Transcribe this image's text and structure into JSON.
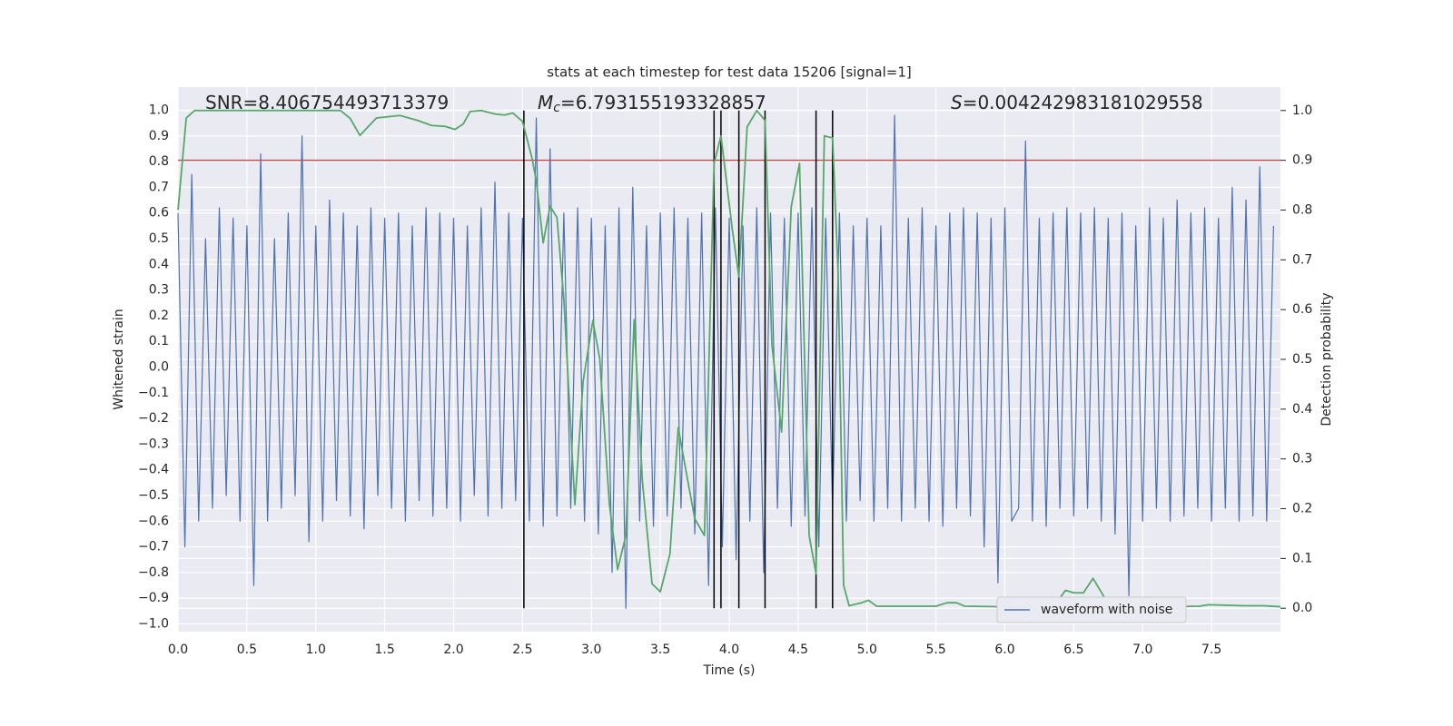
{
  "chart_data": {
    "type": "line",
    "title": "stats at each timestep for test data 15206 [signal=1]",
    "xlabel": "Time (s)",
    "ylabel": "Whitened strain",
    "y2label": "Detection probability",
    "xlim": [
      0,
      8.0
    ],
    "ylim": [
      -1.03,
      1.09
    ],
    "y2lim": [
      -0.047,
      1.047
    ],
    "xticks": [
      {
        "value": 0,
        "label": "0.0"
      },
      0.5,
      {
        "value": 1,
        "label": "1.0"
      },
      1.5,
      {
        "value": 2,
        "label": "2.0"
      },
      2.5,
      {
        "value": 3,
        "label": "3.0"
      },
      3.5,
      {
        "value": 4,
        "label": "4.0"
      },
      4.5,
      {
        "value": 5,
        "label": "5.0"
      },
      5.5,
      {
        "value": 6,
        "label": "6.0"
      },
      6.5,
      {
        "value": 7,
        "label": "7.0"
      },
      7.5
    ],
    "yticks": [
      {
        "value": -1,
        "label": "−1.0"
      },
      {
        "value": -0.9,
        "label": "−0.9"
      },
      {
        "value": -0.8,
        "label": "−0.8"
      },
      {
        "value": -0.7,
        "label": "−0.7"
      },
      {
        "value": -0.6,
        "label": "−0.6"
      },
      {
        "value": -0.5,
        "label": "−0.5"
      },
      {
        "value": -0.4,
        "label": "−0.4"
      },
      {
        "value": -0.3,
        "label": "−0.3"
      },
      {
        "value": -0.2,
        "label": "−0.2"
      },
      {
        "value": -0.1,
        "label": "−0.1"
      },
      {
        "value": 0,
        "label": "0.0"
      },
      0.1,
      0.2,
      0.3,
      0.4,
      0.5,
      0.6,
      0.7,
      0.8,
      0.9,
      {
        "value": 1,
        "label": "1.0"
      }
    ],
    "y2ticks": [
      {
        "value": 0,
        "label": "0.0"
      },
      0.1,
      0.2,
      0.3,
      0.4,
      0.5,
      0.6,
      0.7,
      0.8,
      0.9,
      {
        "value": 1,
        "label": "1.0"
      }
    ],
    "grid": true,
    "legend": "lower right",
    "series": [
      {
        "name": "waveform with noise",
        "color": "#4c72b0",
        "axis": "y",
        "x": [
          0,
          0.05,
          0.1,
          0.15,
          0.2,
          0.25,
          0.3,
          0.35,
          0.4,
          0.45,
          0.5,
          0.55,
          0.6,
          0.65,
          0.7,
          0.75,
          0.8,
          0.85,
          0.9,
          0.95,
          1,
          1.05,
          1.1,
          1.15,
          1.2,
          1.25,
          1.3,
          1.35,
          1.4,
          1.45,
          1.5,
          1.55,
          1.6,
          1.65,
          1.7,
          1.75,
          1.8,
          1.85,
          1.9,
          1.95,
          2,
          2.05,
          2.1,
          2.15,
          2.2,
          2.25,
          2.3,
          2.35,
          2.4,
          2.45,
          2.5,
          2.55,
          2.6,
          2.65,
          2.7,
          2.75,
          2.8,
          2.85,
          2.9,
          2.95,
          3,
          3.05,
          3.1,
          3.15,
          3.2,
          3.25,
          3.3,
          3.35,
          3.4,
          3.45,
          3.5,
          3.55,
          3.6,
          3.65,
          3.7,
          3.75,
          3.8,
          3.85,
          3.9,
          3.95,
          4,
          4.05,
          4.1,
          4.15,
          4.2,
          4.25,
          4.3,
          4.35,
          4.4,
          4.45,
          4.5,
          4.55,
          4.6,
          4.65,
          4.7,
          4.75,
          4.8,
          4.85,
          4.9,
          4.95,
          5,
          5.05,
          5.1,
          5.15,
          5.2,
          5.25,
          5.3,
          5.35,
          5.4,
          5.45,
          5.5,
          5.55,
          5.6,
          5.65,
          5.7,
          5.75,
          5.8,
          5.85,
          5.9,
          5.95,
          6,
          6.05,
          6.1,
          6.15,
          6.2,
          6.25,
          6.3,
          6.35,
          6.4,
          6.45,
          6.5,
          6.55,
          6.6,
          6.65,
          6.7,
          6.75,
          6.8,
          6.85,
          6.9,
          6.95,
          7,
          7.05,
          7.1,
          7.15,
          7.2,
          7.25,
          7.3,
          7.35,
          7.4,
          7.45,
          7.5,
          7.55,
          7.6,
          7.65,
          7.7,
          7.75,
          7.8,
          7.85,
          7.9,
          7.95
        ],
        "values": [
          0.6,
          -0.7,
          0.75,
          -0.6,
          0.5,
          -0.55,
          0.62,
          -0.5,
          0.58,
          -0.6,
          0.55,
          -0.85,
          0.83,
          -0.6,
          0.5,
          -0.55,
          0.6,
          -0.5,
          0.9,
          -0.68,
          0.55,
          -0.6,
          0.65,
          -0.52,
          0.6,
          -0.58,
          0.55,
          -0.63,
          0.62,
          -0.5,
          0.58,
          -0.55,
          0.6,
          -0.6,
          0.55,
          -0.52,
          0.62,
          -0.58,
          0.6,
          -0.55,
          0.58,
          -0.6,
          0.55,
          -0.5,
          0.62,
          -0.58,
          0.72,
          -0.55,
          0.6,
          -0.52,
          0.58,
          -0.6,
          0.97,
          -0.62,
          0.85,
          -0.58,
          0.6,
          -0.55,
          0.62,
          -0.6,
          0.58,
          -0.65,
          0.55,
          -0.8,
          0.62,
          -0.94,
          0.7,
          -0.6,
          0.55,
          -0.62,
          0.6,
          -0.58,
          0.62,
          -0.55,
          0.58,
          -0.65,
          0.6,
          -0.85,
          0.62,
          -0.7,
          0.58,
          -0.75,
          0.55,
          -0.6,
          0.62,
          -0.8,
          0.6,
          -0.55,
          0.58,
          -0.62,
          0.6,
          -0.58,
          0.62,
          -0.7,
          0.58,
          -0.55,
          0.6,
          -0.6,
          0.55,
          -0.52,
          0.58,
          -0.6,
          0.55,
          -0.55,
          0.98,
          -0.6,
          0.58,
          -0.55,
          0.62,
          -0.6,
          0.55,
          -0.62,
          0.6,
          -0.55,
          0.62,
          -0.58,
          0.6,
          -0.7,
          0.58,
          -0.84,
          0.62,
          -0.6,
          -0.55,
          0.88,
          -0.6,
          0.58,
          -0.62,
          0.6,
          -0.55,
          0.62,
          -0.58,
          0.6,
          -0.55,
          0.62,
          -0.6,
          0.58,
          -0.65,
          0.6,
          -0.89,
          0.55,
          -0.6,
          0.62,
          -0.55,
          0.58,
          -0.6,
          0.65,
          -0.58,
          0.6,
          -0.55,
          0.62,
          -0.6,
          0.58,
          -0.55,
          0.7,
          -0.6,
          0.65,
          -0.58,
          0.78,
          -0.6,
          0.55
        ]
      },
      {
        "color": "#55a868",
        "axis": "y2",
        "x": [
          0,
          0.06,
          0.12,
          1.18,
          1.25,
          1.32,
          1.44,
          1.61,
          1.74,
          1.84,
          1.94,
          2.01,
          2.07,
          2.12,
          2.2,
          2.3,
          2.37,
          2.43,
          2.5,
          2.57,
          2.6,
          2.65,
          2.7,
          2.75,
          2.8,
          2.88,
          2.94,
          3.01,
          3.06,
          3.13,
          3.19,
          3.25,
          3.31,
          3.37,
          3.44,
          3.5,
          3.57,
          3.63,
          3.69,
          3.75,
          3.82,
          3.89,
          3.94,
          3.98,
          4.02,
          4.07,
          4.13,
          4.2,
          4.26,
          4.31,
          4.38,
          4.45,
          4.51,
          4.58,
          4.63,
          4.69,
          4.75,
          4.79,
          4.83,
          4.87,
          4.96,
          5.01,
          5.07,
          5.5,
          5.58,
          5.65,
          5.71,
          6.23,
          6.37,
          6.44,
          6.5,
          6.57,
          6.64,
          6.75,
          6.89,
          7.41,
          7.48,
          7.74,
          7.88,
          8.0
        ],
        "values": [
          0.8,
          0.985,
          1.0,
          1.0,
          0.984,
          0.95,
          0.985,
          0.99,
          0.98,
          0.97,
          0.968,
          0.962,
          0.973,
          0.998,
          1.0,
          0.993,
          0.991,
          0.995,
          0.978,
          0.903,
          0.858,
          0.734,
          0.808,
          0.785,
          0.62,
          0.208,
          0.456,
          0.578,
          0.502,
          0.21,
          0.078,
          0.146,
          0.58,
          0.255,
          0.049,
          0.033,
          0.109,
          0.363,
          0.27,
          0.18,
          0.146,
          0.894,
          0.949,
          0.858,
          0.766,
          0.666,
          0.967,
          1.0,
          0.98,
          0.529,
          0.354,
          0.807,
          0.894,
          0.146,
          0.069,
          0.949,
          0.945,
          0.675,
          0.046,
          0.005,
          0.011,
          0.016,
          0.004,
          0.004,
          0.011,
          0.011,
          0.004,
          0.002,
          0.009,
          0.036,
          0.031,
          0.031,
          0.06,
          0.009,
          0.002,
          0.004,
          0.007,
          0.005,
          0.005,
          0.003
        ]
      }
    ],
    "threshold": {
      "value": 0.9,
      "axis": "y2",
      "color": "#c44e52"
    },
    "vlines": {
      "x": [
        2.51,
        3.89,
        3.94,
        4.07,
        4.26,
        4.63,
        4.75
      ],
      "ymin": 0,
      "ymax": 1,
      "axis": "y2",
      "color": "#000000"
    },
    "annotations": [
      {
        "text": "SNR=8.406754493713379"
      },
      {
        "symbol": "M",
        "subscript": "c",
        "text": "=6.793155193328857"
      },
      {
        "symbol": "S",
        "text": "=0.004242983181029558"
      }
    ]
  }
}
